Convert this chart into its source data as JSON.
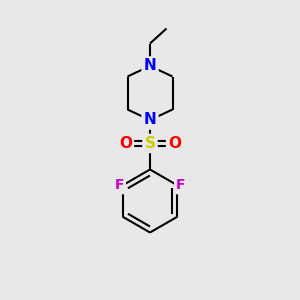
{
  "background_color": "#e8e8e8",
  "bond_color": "#000000",
  "N_color": "#0000ff",
  "S_color": "#cccc00",
  "O_color": "#ff0000",
  "F_color": "#cc00cc",
  "line_width": 1.5,
  "font_size": 11,
  "fig_size": [
    3.0,
    3.0
  ],
  "dpi": 100,
  "xlim": [
    0,
    10
  ],
  "ylim": [
    0,
    10
  ]
}
